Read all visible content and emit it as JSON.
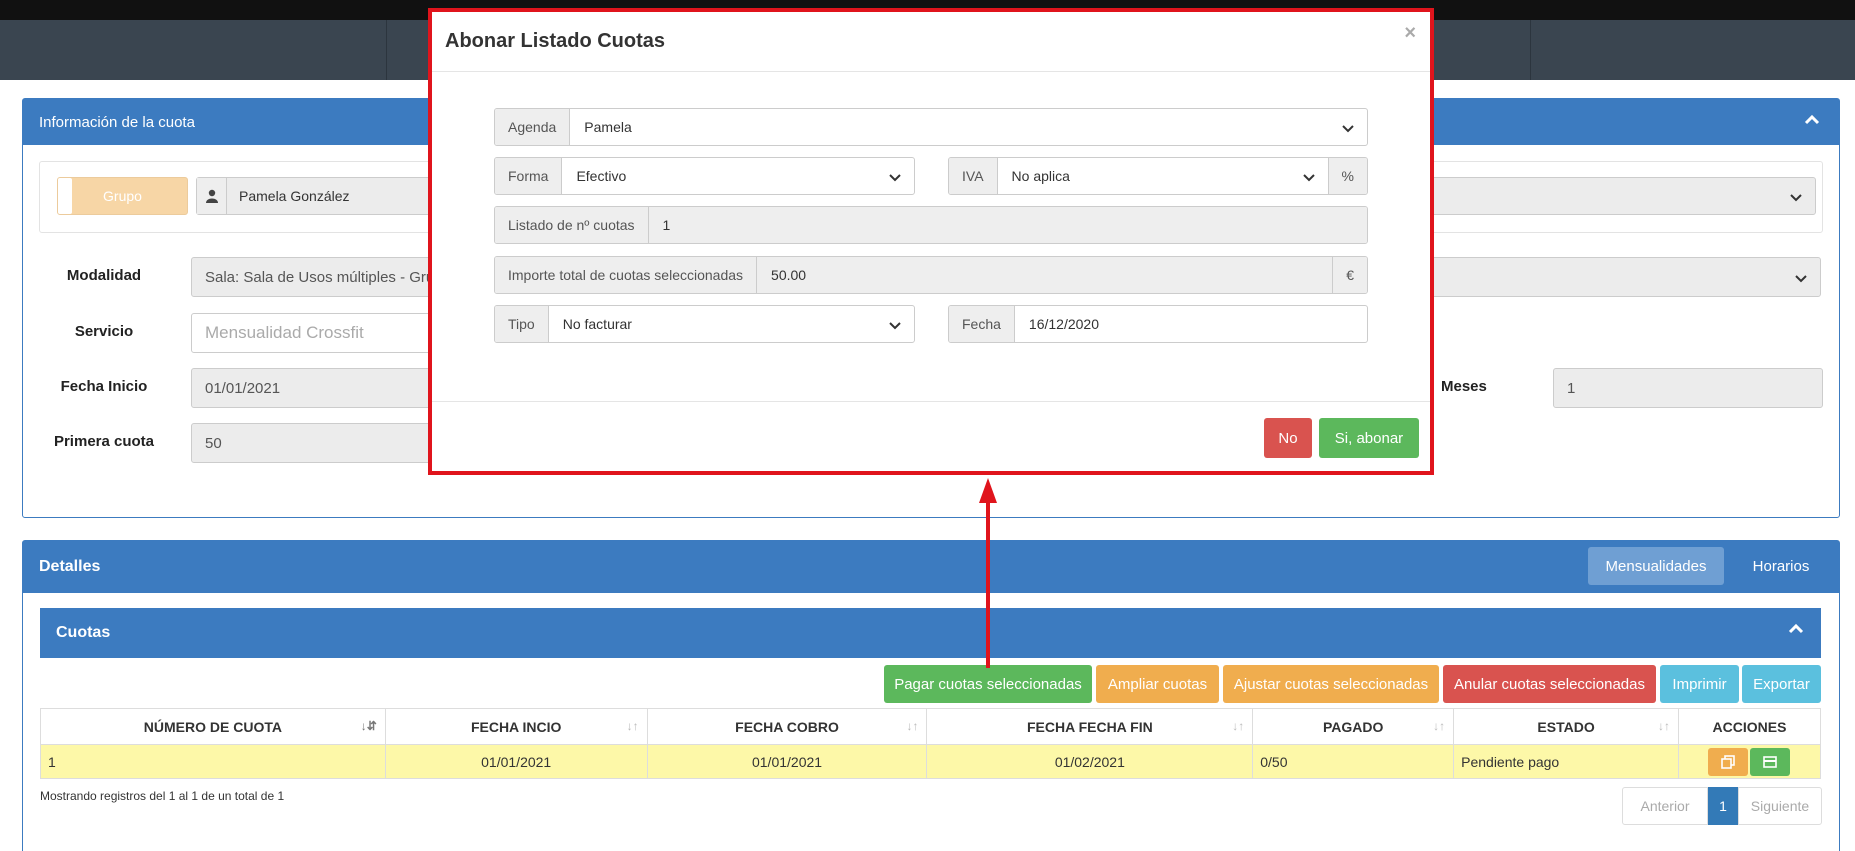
{
  "window": {
    "title": "Abonar Listado Cuotas"
  },
  "info_panel": {
    "title": "Información de la cuota"
  },
  "client": {
    "group_button": "Grupo",
    "name": "Pamela González"
  },
  "form": {
    "modalidad_label": "Modalidad",
    "modalidad_value": "Sala: Sala de Usos múltiples - Grupo",
    "servicio_label": "Servicio",
    "servicio_placeholder": "Mensualidad Crossfit",
    "fecha_inicio_label": "Fecha Inicio",
    "fecha_inicio_value": "01/01/2021",
    "meses_label": "Meses",
    "meses_value": "1",
    "primera_cuota_label": "Primera cuota",
    "primera_cuota_value": "50"
  },
  "details_panel": {
    "title": "Detalles",
    "tabs": [
      "Mensualidades",
      "Horarios"
    ]
  },
  "cuotas_panel": {
    "title": "Cuotas"
  },
  "actions": {
    "pagar": "Pagar cuotas seleccionadas",
    "ampliar": "Ampliar cuotas",
    "ajustar": "Ajustar cuotas seleccionadas",
    "anular": "Anular cuotas seleccionadas",
    "imprimir": "Imprimir",
    "exportar": "Exportar"
  },
  "table": {
    "headers": [
      "NÚMERO DE CUOTA",
      "FECHA INCIO",
      "FECHA COBRO",
      "FECHA FECHA FIN",
      "PAGADO",
      "ESTADO",
      "ACCIONES"
    ],
    "rows": [
      {
        "numero": "1",
        "inicio": "01/01/2021",
        "cobro": "01/01/2021",
        "fin": "01/02/2021",
        "pagado": "0/50",
        "estado": "Pendiente pago"
      }
    ],
    "info": "Mostrando registros del 1 al 1 de un total de 1"
  },
  "pagination": {
    "prev": "Anterior",
    "page": "1",
    "next": "Siguiente"
  },
  "modal": {
    "title": "Abonar Listado Cuotas",
    "close": "×",
    "agenda_label": "Agenda",
    "agenda_value": "Pamela",
    "forma_label": "Forma",
    "forma_value": "Efectivo",
    "iva_label": "IVA",
    "iva_value": "No aplica",
    "iva_suffix": "%",
    "listado_label": "Listado de nº cuotas",
    "listado_value": "1",
    "importe_label": "Importe total de cuotas seleccionadas",
    "importe_value": "50.00",
    "importe_suffix": "€",
    "tipo_label": "Tipo",
    "tipo_value": "No facturar",
    "fecha_label": "Fecha",
    "fecha_value": "16/12/2020",
    "no_button": "No",
    "yes_button": "Si, abonar"
  },
  "colors": {
    "primary": "#3c7bc0",
    "success": "#5cb85c",
    "warning": "#f0ad4e",
    "danger": "#d9534f",
    "info": "#5bc0de",
    "highlight": "#e0141c"
  }
}
